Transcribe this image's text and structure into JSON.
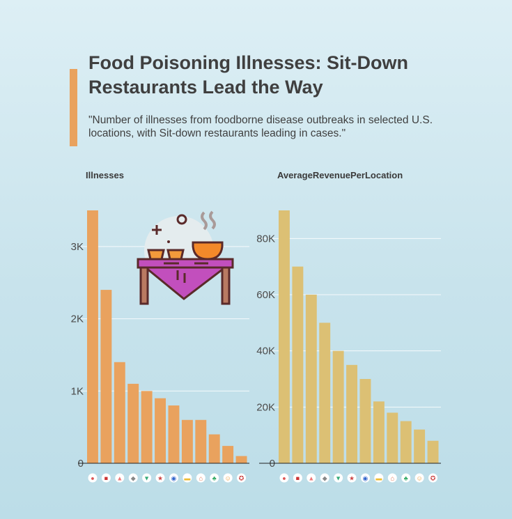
{
  "title": "Food Poisoning Illnesses: Sit-Down Restaurants Lead the Way",
  "subtitle": "\"Number of illnesses from foodborne disease outbreaks in selected U.S. locations, with Sit-down restaurants leading in cases.\"",
  "colors": {
    "accent": "#e9a25e",
    "left_bars": "#e9a25e",
    "right_bars": "#dcc074"
  },
  "chart_data": [
    {
      "type": "bar",
      "ylabel": "Illnesses",
      "ylim": [
        0,
        3500
      ],
      "ticks": [
        0,
        1000,
        2000,
        3000
      ],
      "tick_labels": [
        "0",
        "1K",
        "2K",
        "3K"
      ],
      "grid": true,
      "values": [
        3500,
        2400,
        1400,
        1100,
        1000,
        900,
        800,
        600,
        600,
        400,
        240,
        100
      ],
      "category_icons": [
        "location-pin-icon",
        "catering-truck-icon",
        "people-icon",
        "fence-icon",
        "worker-icon",
        "picnic-table-icon",
        "pot-icon",
        "banquet-icon",
        "house-icon",
        "tree-icon",
        "family-icon",
        "medal-icon"
      ]
    },
    {
      "type": "bar",
      "ylabel": "AverageRevenuePerLocation",
      "ylim": [
        0,
        90000
      ],
      "ticks": [
        0,
        20000,
        40000,
        60000,
        80000
      ],
      "tick_labels": [
        "0",
        "20K",
        "40K",
        "60K",
        "80K"
      ],
      "grid": true,
      "values": [
        90000,
        70000,
        60000,
        50000,
        40000,
        35000,
        30000,
        22000,
        18000,
        15000,
        12000,
        8000
      ],
      "category_icons": [
        "family-icon",
        "medal-icon",
        "catering-truck-icon",
        "pot-icon",
        "location-pin-icon",
        "people-icon",
        "worker-icon",
        "picnic-table-icon",
        "fence-icon",
        "banquet-icon",
        "tree-icon",
        "house-icon"
      ]
    }
  ]
}
